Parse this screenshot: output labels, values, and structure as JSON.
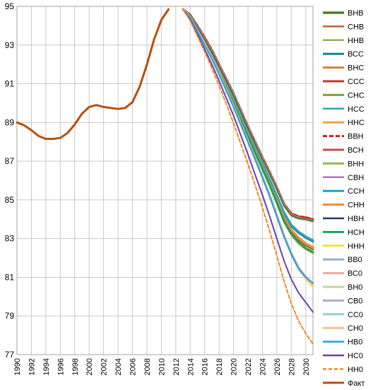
{
  "chart_data": {
    "type": "line",
    "title": "",
    "xlabel": "",
    "ylabel": "",
    "xlim": [
      1990,
      2031
    ],
    "ylim": [
      77,
      95
    ],
    "y_ticks": [
      "77",
      "79",
      "81",
      "83",
      "85",
      "87",
      "89",
      "91",
      "93",
      "95"
    ],
    "x_ticks": [
      "1990",
      "1992",
      "1994",
      "1996",
      "1998",
      "2000",
      "2002",
      "2004",
      "2006",
      "2008",
      "2010",
      "2012",
      "2014",
      "2016",
      "2018",
      "2020",
      "2022",
      "2024",
      "2026",
      "2028",
      "2030"
    ],
    "grid": true,
    "legend_position": "right",
    "fact": {
      "name": "Факт",
      "color": "#b5500f",
      "x": [
        1990,
        1991,
        1992,
        1993,
        1994,
        1995,
        1996,
        1997,
        1998,
        1999,
        2000,
        2001,
        2002,
        2003,
        2004,
        2005,
        2006,
        2007,
        2008,
        2009,
        2010,
        2011
      ],
      "y": [
        89.0,
        88.85,
        88.6,
        88.3,
        88.15,
        88.15,
        88.2,
        88.45,
        88.9,
        89.45,
        89.8,
        89.9,
        89.8,
        89.75,
        89.7,
        89.75,
        90.05,
        90.85,
        92.0,
        93.3,
        94.3,
        94.85
      ]
    },
    "projection_x": [
      2013,
      2014,
      2015,
      2016,
      2017,
      2018,
      2019,
      2020,
      2021,
      2022,
      2023,
      2024,
      2025,
      2026,
      2027,
      2028,
      2029,
      2030,
      2031
    ],
    "series": [
      {
        "name": "ВНВ",
        "color": "#4e7f2c",
        "width": 3.5,
        "dash": "",
        "y": [
          94.85,
          94.55,
          93.95,
          93.35,
          92.7,
          91.95,
          91.2,
          90.45,
          89.6,
          88.75,
          87.95,
          87.15,
          86.4,
          85.6,
          84.75,
          84.25,
          84.1,
          84.05,
          83.95
        ]
      },
      {
        "name": "СНВ",
        "color": "#c0612a",
        "width": 2,
        "dash": "",
        "y": [
          94.85,
          94.5,
          93.9,
          93.3,
          92.65,
          91.9,
          91.15,
          90.4,
          89.55,
          88.7,
          87.9,
          87.1,
          86.35,
          85.55,
          84.7,
          84.2,
          84.05,
          84.0,
          83.9
        ]
      },
      {
        "name": "ННВ",
        "color": "#8cb15a",
        "width": 1.5,
        "dash": "",
        "y": [
          94.85,
          94.5,
          93.9,
          93.3,
          92.6,
          91.9,
          91.1,
          90.35,
          89.5,
          88.65,
          87.85,
          87.05,
          86.3,
          85.5,
          84.65,
          84.15,
          84.0,
          83.95,
          83.85
        ]
      },
      {
        "name": "ВСС",
        "color": "#1a7f8f",
        "width": 3,
        "dash": "",
        "y": [
          94.85,
          94.45,
          93.85,
          93.2,
          92.5,
          91.75,
          90.95,
          90.15,
          89.3,
          88.45,
          87.6,
          86.8,
          86.0,
          85.15,
          84.3,
          83.65,
          83.3,
          83.05,
          82.85
        ]
      },
      {
        "name": "ВНС",
        "color": "#d7833a",
        "width": 3,
        "dash": "",
        "y": [
          94.85,
          94.45,
          93.85,
          93.2,
          92.55,
          91.8,
          91.0,
          90.2,
          89.35,
          88.5,
          87.65,
          86.85,
          86.05,
          85.2,
          84.35,
          83.7,
          83.35,
          83.1,
          82.9
        ]
      },
      {
        "name": "ССС",
        "color": "#c0392b",
        "width": 3,
        "dash": "",
        "y": [
          94.85,
          94.45,
          93.8,
          93.15,
          92.45,
          91.7,
          90.9,
          90.1,
          89.25,
          88.4,
          87.55,
          86.7,
          85.85,
          85.0,
          84.05,
          83.4,
          82.95,
          82.65,
          82.45
        ]
      },
      {
        "name": "СНС",
        "color": "#7aa33b",
        "width": 3,
        "dash": "",
        "y": [
          94.85,
          94.45,
          93.8,
          93.15,
          92.45,
          91.7,
          90.9,
          90.1,
          89.25,
          88.4,
          87.55,
          86.7,
          85.85,
          85.0,
          84.05,
          83.45,
          83.0,
          82.7,
          82.5
        ]
      },
      {
        "name": "НСС",
        "color": "#2ea3b5",
        "width": 2,
        "dash": "",
        "y": [
          94.85,
          94.4,
          93.75,
          93.1,
          92.4,
          91.6,
          90.8,
          90.0,
          89.15,
          88.3,
          87.45,
          86.6,
          85.75,
          84.85,
          83.9,
          83.25,
          82.8,
          82.5,
          82.3
        ]
      },
      {
        "name": "ННС",
        "color": "#f0a040",
        "width": 3,
        "dash": "",
        "y": [
          94.85,
          94.4,
          93.75,
          93.1,
          92.4,
          91.6,
          90.8,
          90.0,
          89.15,
          88.3,
          87.45,
          86.6,
          85.75,
          84.85,
          83.85,
          83.2,
          82.75,
          82.45,
          82.25
        ]
      },
      {
        "name": "ВВН",
        "color": "#c41e24",
        "width": 3,
        "dash": "6,3",
        "y": [
          94.85,
          94.55,
          94.0,
          93.4,
          92.75,
          92.0,
          91.25,
          90.5,
          89.65,
          88.8,
          88.0,
          87.2,
          86.45,
          85.65,
          84.8,
          84.3,
          84.15,
          84.1,
          84.0
        ]
      },
      {
        "name": "ВСН",
        "color": "#c44e4e",
        "width": 3,
        "dash": "",
        "y": [
          94.85,
          94.5,
          93.95,
          93.35,
          92.7,
          91.95,
          91.2,
          90.45,
          89.6,
          88.75,
          87.95,
          87.15,
          86.4,
          85.6,
          84.75,
          84.25,
          84.1,
          84.0,
          83.95
        ]
      },
      {
        "name": "ВНН",
        "color": "#96b84f",
        "width": 3,
        "dash": "",
        "y": [
          94.85,
          94.5,
          93.9,
          93.3,
          92.65,
          91.9,
          91.15,
          90.4,
          89.55,
          88.7,
          87.9,
          87.1,
          86.35,
          85.55,
          84.7,
          84.2,
          84.05,
          84.0,
          83.9
        ]
      },
      {
        "name": "СВН",
        "color": "#a97ab5",
        "width": 1,
        "dash": "",
        "y": [
          94.85,
          94.5,
          93.9,
          93.3,
          92.65,
          91.9,
          91.15,
          90.4,
          89.55,
          88.7,
          87.9,
          87.1,
          86.35,
          85.55,
          84.7,
          84.2,
          84.05,
          84.0,
          83.9
        ]
      },
      {
        "name": "ССН",
        "color": "#1aa3c9",
        "width": 3,
        "dash": "",
        "y": [
          94.85,
          94.45,
          93.85,
          93.2,
          92.55,
          91.8,
          91.0,
          90.2,
          89.35,
          88.5,
          87.65,
          86.85,
          86.05,
          85.2,
          84.35,
          83.7,
          83.35,
          83.1,
          82.9
        ]
      },
      {
        "name": "СНН",
        "color": "#f08a3c",
        "width": 3,
        "dash": "",
        "y": [
          94.85,
          94.45,
          93.8,
          93.15,
          92.45,
          91.7,
          90.9,
          90.1,
          89.25,
          88.4,
          87.55,
          86.7,
          85.85,
          85.0,
          84.1,
          83.45,
          83.05,
          82.75,
          82.55
        ]
      },
      {
        "name": "НВН",
        "color": "#1f3b6b",
        "width": 1,
        "dash": "",
        "y": [
          94.85,
          94.5,
          93.9,
          93.3,
          92.65,
          91.9,
          91.15,
          90.4,
          89.55,
          88.7,
          87.9,
          87.1,
          86.35,
          85.55,
          84.7,
          84.2,
          84.05,
          84.0,
          83.9
        ]
      },
      {
        "name": "НСН",
        "color": "#1aa35a",
        "width": 3,
        "dash": "",
        "y": [
          94.85,
          94.4,
          93.75,
          93.1,
          92.4,
          91.6,
          90.8,
          90.0,
          89.15,
          88.3,
          87.45,
          86.6,
          85.75,
          84.85,
          83.9,
          83.25,
          82.8,
          82.5,
          82.3
        ]
      },
      {
        "name": "ННН",
        "color": "#f5e11a",
        "width": 2,
        "dash": "",
        "y": [
          94.85,
          94.4,
          93.7,
          93.0,
          92.3,
          91.5,
          90.65,
          89.8,
          88.9,
          88.0,
          87.05,
          86.1,
          85.15,
          84.1,
          83.05,
          82.15,
          81.4,
          80.9,
          80.5
        ]
      },
      {
        "name": "ВВ0",
        "color": "#94aed4",
        "width": 3,
        "dash": "",
        "y": [
          94.85,
          94.4,
          93.75,
          93.05,
          92.35,
          91.55,
          90.7,
          89.85,
          88.95,
          88.05,
          87.15,
          86.2,
          85.25,
          84.2,
          83.15,
          82.25,
          81.5,
          81.0,
          80.65
        ]
      },
      {
        "name": "ВС0",
        "color": "#f0a8a0",
        "width": 3,
        "dash": "",
        "y": [
          94.85,
          94.4,
          93.75,
          93.05,
          92.35,
          91.55,
          90.7,
          89.85,
          88.95,
          88.05,
          87.15,
          86.2,
          85.25,
          84.2,
          83.15,
          82.25,
          81.5,
          81.0,
          80.65
        ]
      },
      {
        "name": "ВН0",
        "color": "#c3d69b",
        "width": 3,
        "dash": "",
        "y": [
          94.85,
          94.4,
          93.75,
          93.05,
          92.35,
          91.55,
          90.7,
          89.85,
          88.95,
          88.05,
          87.15,
          86.2,
          85.25,
          84.2,
          83.15,
          82.25,
          81.5,
          81.0,
          80.65
        ]
      },
      {
        "name": "СВ0",
        "color": "#b4a7d6",
        "width": 3,
        "dash": "",
        "y": [
          94.85,
          94.4,
          93.75,
          93.05,
          92.35,
          91.55,
          90.7,
          89.85,
          88.95,
          88.05,
          87.15,
          86.2,
          85.25,
          84.2,
          83.15,
          82.25,
          81.5,
          81.0,
          80.65
        ]
      },
      {
        "name": "СС0",
        "color": "#92cddc",
        "width": 3,
        "dash": "",
        "y": [
          94.85,
          94.4,
          93.7,
          93.05,
          92.3,
          91.5,
          90.65,
          89.8,
          88.9,
          88.0,
          87.1,
          86.15,
          85.2,
          84.15,
          83.1,
          82.2,
          81.45,
          80.95,
          80.6
        ]
      },
      {
        "name": "СН0",
        "color": "#fac090",
        "width": 3,
        "dash": "",
        "y": [
          94.85,
          94.4,
          93.7,
          93.05,
          92.3,
          91.5,
          90.65,
          89.8,
          88.9,
          88.0,
          87.1,
          86.15,
          85.2,
          84.15,
          83.1,
          82.2,
          81.45,
          80.95,
          80.6
        ]
      },
      {
        "name": "НВ0",
        "color": "#1ea0e0",
        "width": 2,
        "dash": "",
        "y": [
          94.85,
          94.4,
          93.7,
          93.0,
          92.3,
          91.5,
          90.65,
          89.8,
          88.9,
          88.0,
          87.1,
          86.15,
          85.2,
          84.15,
          83.1,
          82.2,
          81.45,
          81.0,
          80.7
        ]
      },
      {
        "name": "НС0",
        "color": "#6a3fb0",
        "width": 2,
        "dash": "",
        "y": [
          94.85,
          94.3,
          93.55,
          92.8,
          92.0,
          91.15,
          90.25,
          89.35,
          88.35,
          87.35,
          86.3,
          85.25,
          84.15,
          83.0,
          81.85,
          80.9,
          80.2,
          79.7,
          79.2
        ]
      },
      {
        "name": "НН0",
        "color": "#f08a2c",
        "width": 2,
        "dash": "5,3",
        "y": [
          94.85,
          94.25,
          93.45,
          92.65,
          91.8,
          90.9,
          89.95,
          88.95,
          87.9,
          86.85,
          85.75,
          84.6,
          83.4,
          82.1,
          80.8,
          79.65,
          78.75,
          78.1,
          77.55
        ]
      }
    ]
  }
}
